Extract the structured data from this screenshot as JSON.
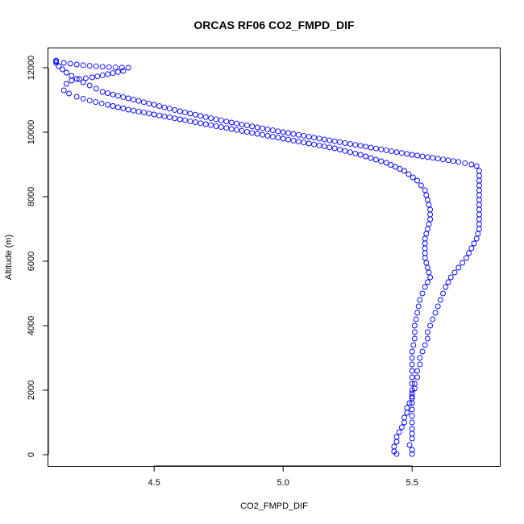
{
  "chart_data": {
    "type": "scatter",
    "title": "ORCAS RF06 CO2_FMPD_DIF",
    "xlabel": "CO2_FMPD_DIF",
    "ylabel": "Altitude (m)",
    "xlim": [
      4.09,
      5.84
    ],
    "ylim": [
      -350,
      12600
    ],
    "xticks": [
      4.5,
      5.0,
      5.5
    ],
    "xtick_labels": [
      "4.5",
      "5.0",
      "5.5"
    ],
    "yticks": [
      0,
      2000,
      4000,
      6000,
      8000,
      10000,
      12000
    ],
    "ytick_labels": [
      "0",
      "2000",
      "4000",
      "6000",
      "8000",
      "10000",
      "12000"
    ],
    "grid": false,
    "marker": "open-circle",
    "color": "#0000ff",
    "series": [
      {
        "values_x": [
          5.44,
          5.43,
          5.43,
          5.44,
          5.44,
          5.45,
          5.46,
          5.47,
          5.47,
          5.48,
          5.48,
          5.49,
          5.5,
          5.5,
          5.51,
          5.51,
          5.52,
          5.52,
          5.53,
          5.53,
          5.54,
          5.55,
          5.56,
          5.56,
          5.57,
          5.59,
          5.61,
          5.63,
          5.65,
          5.68,
          5.71,
          5.73,
          5.75,
          5.76,
          5.76,
          5.76,
          5.76,
          5.76,
          5.76,
          5.76,
          5.75,
          5.73,
          5.68,
          5.6,
          5.5,
          5.4,
          5.3,
          5.2,
          5.1,
          5.0,
          4.9,
          4.8,
          4.7,
          4.6,
          4.5,
          4.4,
          4.3,
          4.25,
          4.2,
          4.16,
          4.13,
          4.12,
          4.12
        ],
        "values_y": [
          20,
          100,
          250,
          400,
          550,
          700,
          850,
          1000,
          1150,
          1300,
          1450,
          1600,
          1750,
          1900,
          2050,
          2200,
          2400,
          2600,
          2800,
          3000,
          3200,
          3400,
          3600,
          3800,
          4000,
          4400,
          4800,
          5200,
          5500,
          5800,
          6100,
          6400,
          6700,
          7000,
          7300,
          7600,
          7900,
          8200,
          8500,
          8800,
          8950,
          9000,
          9080,
          9180,
          9300,
          9440,
          9580,
          9720,
          9860,
          10000,
          10150,
          10300,
          10470,
          10650,
          10850,
          11050,
          11250,
          11450,
          11650,
          11850,
          12050,
          12150,
          12220
        ]
      },
      {
        "values_x": [
          4.12,
          4.15,
          4.2,
          4.25,
          4.3,
          4.35,
          4.4,
          4.38,
          4.32,
          4.26,
          4.21,
          4.18,
          4.16,
          4.15,
          4.17,
          4.2,
          4.25,
          4.32,
          4.4,
          4.5,
          4.6,
          4.7,
          4.8,
          4.9,
          5.0,
          5.1,
          5.2,
          5.3,
          5.4,
          5.47,
          5.52,
          5.55,
          5.56,
          5.57,
          5.57,
          5.56,
          5.55,
          5.55,
          5.55,
          5.56,
          5.57,
          5.55,
          5.53,
          5.52,
          5.51,
          5.51,
          5.5,
          5.5,
          5.5,
          5.5,
          5.5,
          5.5,
          5.5,
          5.5,
          5.49,
          5.5,
          5.5
        ],
        "values_y": [
          12200,
          12150,
          12100,
          12060,
          12030,
          12010,
          12000,
          11900,
          11800,
          11700,
          11650,
          11600,
          11500,
          11300,
          11200,
          11100,
          10980,
          10850,
          10700,
          10550,
          10400,
          10250,
          10100,
          9950,
          9800,
          9650,
          9500,
          9300,
          9050,
          8800,
          8500,
          8200,
          7900,
          7600,
          7300,
          7000,
          6700,
          6400,
          6100,
          5800,
          5500,
          5200,
          4800,
          4400,
          4000,
          3600,
          3200,
          2800,
          2400,
          2000,
          1600,
          1200,
          800,
          500,
          300,
          150,
          20
        ]
      }
    ]
  }
}
